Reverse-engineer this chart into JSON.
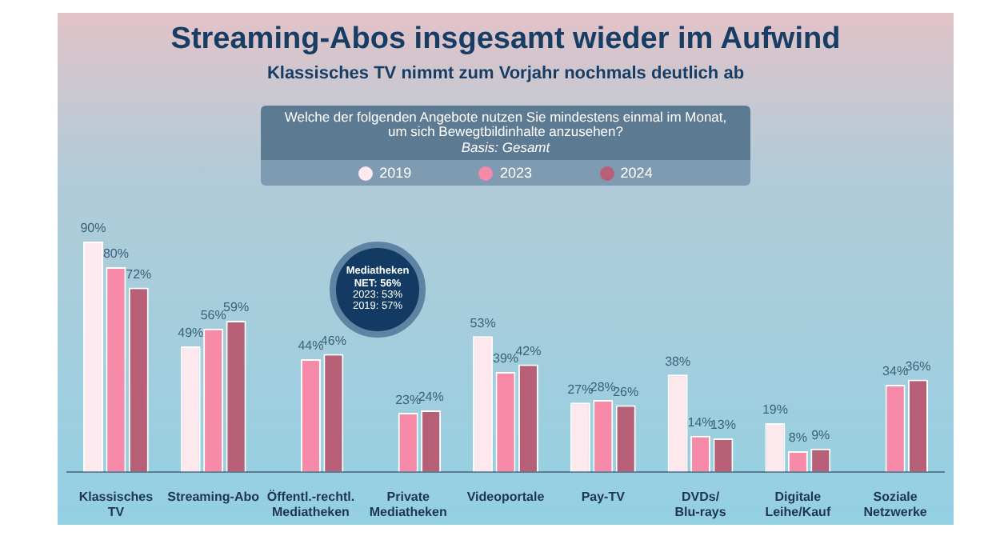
{
  "chart_data": {
    "type": "bar",
    "title": "Streaming-Abos insgesamt wieder im Aufwind",
    "subtitle": "Klassisches TV nimmt zum Vorjahr nochmals deutlich ab",
    "annotations": [
      "Welche der folgenden Angebote nutzen Sie mindestens einmal im Monat, um sich Bewegtbildinhalte anzusehen?",
      "Basis: Gesamt",
      "Mediatheken",
      "NET: 56%",
      "2023: 53%",
      "2019: 57%"
    ],
    "categories": [
      "Klassisches TV",
      "Streaming-Abo",
      "Öffentl.-rechtl. Mediatheken",
      "Private Mediatheken",
      "Videoportale",
      "Pay-TV",
      "DVDs/ Blu-rays",
      "Digitale Leihe/Kauf",
      "Soziale Netzwerke"
    ],
    "tick_labels": "x",
    "legend": "top",
    "series": [
      {
        "name": "2019",
        "color": "#fde8ee",
        "values": [
          90,
          49,
          null,
          null,
          53,
          27,
          38,
          19,
          null
        ],
        "value_labels": [
          "90%",
          "49%",
          null,
          null,
          "53%",
          "27%",
          "38%",
          "19%",
          null
        ]
      },
      {
        "name": "2023",
        "color": "#f78aa8",
        "values": [
          80,
          56,
          44,
          23,
          39,
          28,
          14,
          8,
          34
        ],
        "value_labels": [
          "80%",
          "56%",
          "44%",
          "23%",
          "39%",
          "28%",
          "14%",
          "8%",
          "34%"
        ]
      },
      {
        "name": "2024",
        "color": "#b85f78",
        "values": [
          72,
          59,
          46,
          24,
          42,
          26,
          13,
          9,
          36
        ],
        "value_labels": [
          "72%",
          "59%",
          "46%",
          "24%",
          "42%",
          "26%",
          "13%",
          "9%",
          "36%"
        ]
      }
    ]
  }
}
